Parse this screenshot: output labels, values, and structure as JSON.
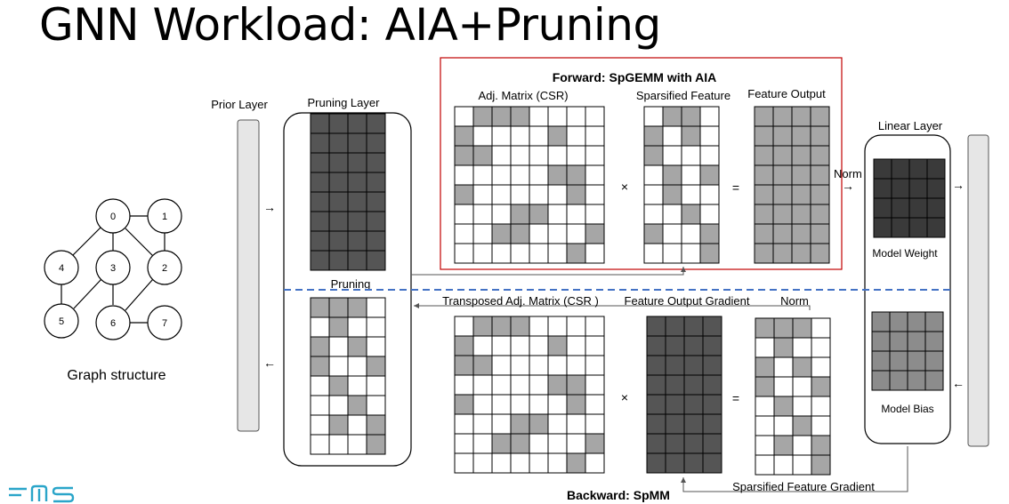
{
  "title": "GNN Workload: AIA+Pruning",
  "graph": {
    "caption": "Graph structure",
    "nodes": [
      "0",
      "1",
      "2",
      "3",
      "4",
      "5",
      "6",
      "7"
    ]
  },
  "labels": {
    "prior_layer": "Prior Layer",
    "pruning_layer": "Pruning Layer",
    "pruning": "Pruning",
    "forward_title": "Forward: SpGEMM with AIA",
    "adj_matrix": "Adj. Matrix (CSR)",
    "sparsified_feature": "Sparsified Feature",
    "feature_output": "Feature Output",
    "times": "×",
    "equals": "=",
    "norm": "Norm",
    "linear_layer": "Linear Layer",
    "model_weight": "Model Weight",
    "model_bias": "Model Bias",
    "transposed_adj": "Transposed Adj. Matrix (CSR )",
    "feature_output_gradient": "Feature Output Gradient",
    "backward_title": "Backward: SpMM",
    "sparsified_feature_gradient": "Sparsified Feature Gradient"
  },
  "colors": {
    "dark": "#555555",
    "darker": "#3a3a3a",
    "light": "#a6a6a6",
    "medium": "#8c8c8c",
    "red_border": "#c00000",
    "dashed_line": "#4472c4"
  },
  "matrices": {
    "adj_pattern": [
      "01110000",
      "10000100",
      "11000000",
      "00000110",
      "10000010",
      "00011000",
      "00110001",
      "00000010"
    ],
    "sparse_feature_pattern": [
      "0110",
      "1010",
      "1000",
      "0101",
      "0100",
      "0010",
      "1001",
      "0001"
    ],
    "pruned_pattern": [
      "1110",
      "0100",
      "1010",
      "1001",
      "0100",
      "0010",
      "0101",
      "0001"
    ],
    "sparsified_gradient_pattern": [
      "1110",
      "0100",
      "1010",
      "1001",
      "0100",
      "0010",
      "0101",
      "0001"
    ]
  }
}
